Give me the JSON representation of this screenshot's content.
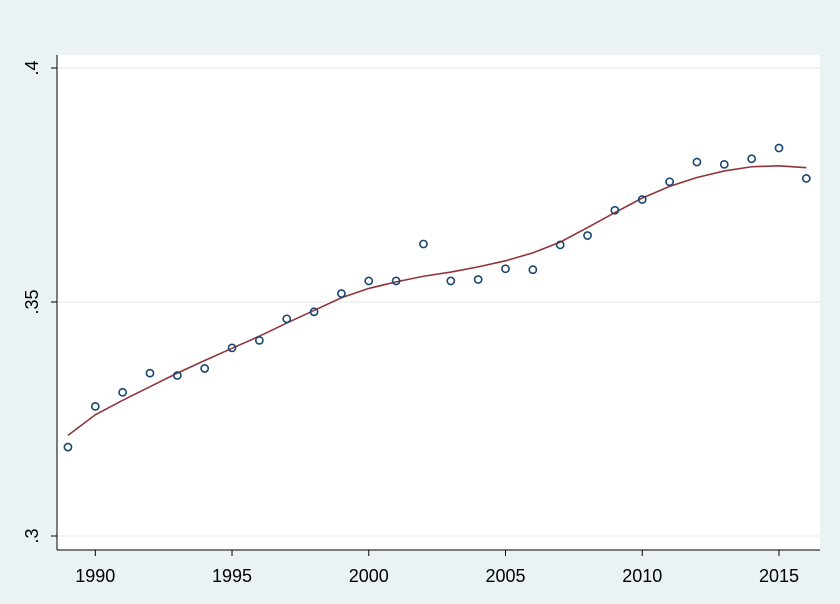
{
  "chart_data": {
    "type": "scatter",
    "title": "",
    "xlabel": "",
    "ylabel": "",
    "xlim": [
      1988.6,
      2016.5
    ],
    "ylim": [
      0.3,
      0.4
    ],
    "x_ticks": [
      1990,
      1995,
      2000,
      2005,
      2010,
      2015
    ],
    "x_tick_labels": [
      "1990",
      "1995",
      "2000",
      "2005",
      "2010",
      "2015"
    ],
    "y_ticks": [
      0.3,
      0.35,
      0.4
    ],
    "y_tick_labels": [
      ".3",
      ".35",
      ".4"
    ],
    "grid": true,
    "legend": "none",
    "plot_background": "#ffffff",
    "page_background": "#eaf2f3",
    "marker_color": "#1a476f",
    "line_color": "#90353b",
    "series": [
      {
        "kind": "scatter",
        "points": [
          [
            1989,
            0.319
          ],
          [
            1990,
            0.3277
          ],
          [
            1991,
            0.3307
          ],
          [
            1992,
            0.3348
          ],
          [
            1993,
            0.3343
          ],
          [
            1994,
            0.3358
          ],
          [
            1995,
            0.3402
          ],
          [
            1996,
            0.3418
          ],
          [
            1997,
            0.3464
          ],
          [
            1998,
            0.3479
          ],
          [
            1999,
            0.3518
          ],
          [
            2000,
            0.3545
          ],
          [
            2001,
            0.3545
          ],
          [
            2002,
            0.3624
          ],
          [
            2003,
            0.3545
          ],
          [
            2004,
            0.3548
          ],
          [
            2005,
            0.3571
          ],
          [
            2006,
            0.3569
          ],
          [
            2007,
            0.3622
          ],
          [
            2008,
            0.3642
          ],
          [
            2009,
            0.3696
          ],
          [
            2010,
            0.3719
          ],
          [
            2011,
            0.3757
          ],
          [
            2012,
            0.3799
          ],
          [
            2013,
            0.3794
          ],
          [
            2014,
            0.3806
          ],
          [
            2015,
            0.3829
          ],
          [
            2016,
            0.3764
          ]
        ]
      },
      {
        "kind": "line",
        "points": [
          [
            1989,
            0.3215
          ],
          [
            1990,
            0.3259
          ],
          [
            1991,
            0.329
          ],
          [
            1992,
            0.3319
          ],
          [
            1993,
            0.3348
          ],
          [
            1994,
            0.3375
          ],
          [
            1995,
            0.3401
          ],
          [
            1996,
            0.3427
          ],
          [
            1997,
            0.3455
          ],
          [
            1998,
            0.3482
          ],
          [
            1999,
            0.3509
          ],
          [
            2000,
            0.3529
          ],
          [
            2001,
            0.3543
          ],
          [
            2002,
            0.3555
          ],
          [
            2003,
            0.3564
          ],
          [
            2004,
            0.3575
          ],
          [
            2005,
            0.3588
          ],
          [
            2006,
            0.3605
          ],
          [
            2007,
            0.3628
          ],
          [
            2008,
            0.3659
          ],
          [
            2009,
            0.3691
          ],
          [
            2010,
            0.3722
          ],
          [
            2011,
            0.3747
          ],
          [
            2012,
            0.3766
          ],
          [
            2013,
            0.378
          ],
          [
            2014,
            0.3789
          ],
          [
            2015,
            0.3791
          ],
          [
            2016,
            0.3787
          ]
        ]
      }
    ]
  }
}
